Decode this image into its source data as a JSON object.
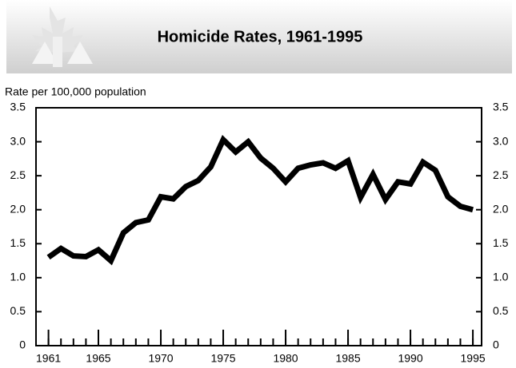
{
  "chart_data": {
    "type": "line",
    "title": "Homicide Rates, 1961-1995",
    "y_label": "Rate per 100,000 population",
    "x": [
      1961,
      1962,
      1963,
      1964,
      1965,
      1966,
      1967,
      1968,
      1969,
      1970,
      1971,
      1972,
      1973,
      1974,
      1975,
      1976,
      1977,
      1978,
      1979,
      1980,
      1981,
      1982,
      1983,
      1984,
      1985,
      1986,
      1987,
      1988,
      1989,
      1990,
      1991,
      1992,
      1993,
      1994,
      1995
    ],
    "series": [
      {
        "name": "Homicide rate",
        "color": "#000000",
        "values": [
          1.3,
          1.43,
          1.32,
          1.31,
          1.41,
          1.25,
          1.66,
          1.81,
          1.85,
          2.19,
          2.16,
          2.34,
          2.43,
          2.63,
          3.03,
          2.85,
          3.0,
          2.76,
          2.61,
          2.41,
          2.61,
          2.66,
          2.69,
          2.61,
          2.72,
          2.18,
          2.52,
          2.15,
          2.41,
          2.38,
          2.7,
          2.58,
          2.19,
          2.05,
          2.0
        ]
      }
    ],
    "xlim": [
      1960,
      1995.7
    ],
    "xticks": [
      1961,
      1965,
      1970,
      1975,
      1980,
      1985,
      1990,
      1995
    ],
    "ylim": [
      0,
      3.5
    ],
    "yticks": [
      0,
      0.5,
      {
        "value": 1,
        "label": "1.0"
      },
      1.5,
      {
        "value": 2,
        "label": "2.0"
      },
      2.5,
      {
        "value": 3,
        "label": "3.0"
      },
      3.5
    ]
  }
}
